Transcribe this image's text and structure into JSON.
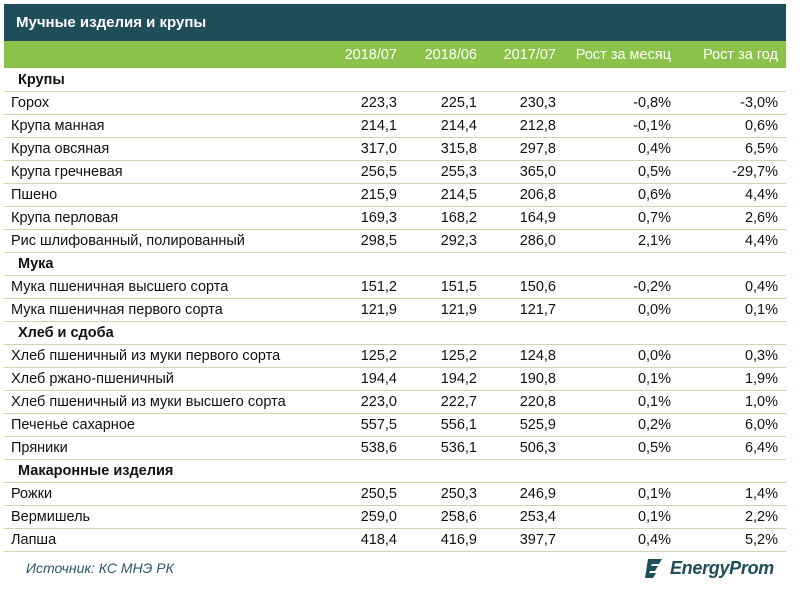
{
  "title": "Мучные изделия и крупы",
  "columns": [
    "",
    "2018/07",
    "2018/06",
    "2017/07",
    "Рост за месяц",
    "Рост за год"
  ],
  "sections": [
    {
      "name": "Крупы",
      "rows": [
        [
          "Горох",
          "223,3",
          "225,1",
          "230,3",
          "-0,8%",
          "-3,0%"
        ],
        [
          "Крупа манная",
          "214,1",
          "214,4",
          "212,8",
          "-0,1%",
          "0,6%"
        ],
        [
          "Крупа овсяная",
          "317,0",
          "315,8",
          "297,8",
          "0,4%",
          "6,5%"
        ],
        [
          "Крупа гречневая",
          "256,5",
          "255,3",
          "365,0",
          "0,5%",
          "-29,7%"
        ],
        [
          "Пшено",
          "215,9",
          "214,5",
          "206,8",
          "0,6%",
          "4,4%"
        ],
        [
          "Крупа перловая",
          "169,3",
          "168,2",
          "164,9",
          "0,7%",
          "2,6%"
        ],
        [
          "Рис шлифованный, полированный",
          "298,5",
          "292,3",
          "286,0",
          "2,1%",
          "4,4%"
        ]
      ]
    },
    {
      "name": "Мука",
      "rows": [
        [
          "Мука пшеничная высшего сорта",
          "151,2",
          "151,5",
          "150,6",
          "-0,2%",
          "0,4%"
        ],
        [
          "Мука пшеничная первого сорта",
          "121,9",
          "121,9",
          "121,7",
          "0,0%",
          "0,1%"
        ]
      ]
    },
    {
      "name": "Хлеб и сдоба",
      "rows": [
        [
          "Хлеб пшеничный из муки первого сорта",
          "125,2",
          "125,2",
          "124,8",
          "0,0%",
          "0,3%"
        ],
        [
          "Хлеб ржано-пшеничный",
          "194,4",
          "194,2",
          "190,8",
          "0,1%",
          "1,9%"
        ],
        [
          "Хлеб пшеничный из муки высшего сорта",
          "223,0",
          "222,7",
          "220,8",
          "0,1%",
          "1,0%"
        ],
        [
          "Печенье сахарное",
          "557,5",
          "556,1",
          "525,9",
          "0,2%",
          "6,0%"
        ],
        [
          "Пряники",
          "538,6",
          "536,1",
          "506,3",
          "0,5%",
          "6,4%"
        ]
      ]
    },
    {
      "name": "Макаронные изделия",
      "rows": [
        [
          "Рожки",
          "250,5",
          "250,3",
          "246,9",
          "0,1%",
          "1,4%"
        ],
        [
          "Вермишель",
          "259,0",
          "258,6",
          "253,4",
          "0,1%",
          "2,2%"
        ],
        [
          "Лапша",
          "418,4",
          "416,9",
          "397,7",
          "0,4%",
          "5,2%"
        ]
      ]
    }
  ],
  "source": "Источник: КС МНЭ РК",
  "brand": "EnergyProm",
  "colors": {
    "title_bg": "#1f4e5a",
    "header_bg": "#8bc34a",
    "row_border": "#c9d9a8"
  }
}
